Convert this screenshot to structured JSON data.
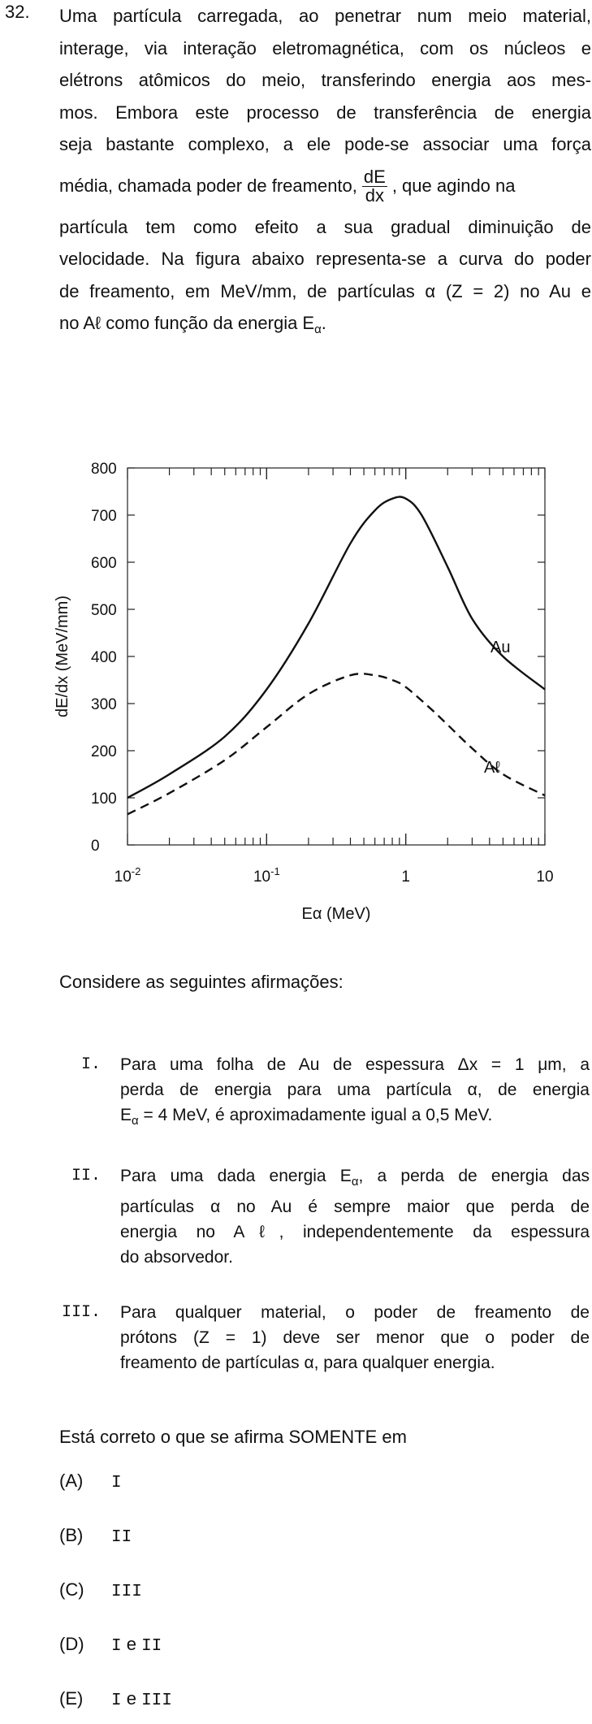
{
  "question": {
    "number": "32.",
    "lines": [
      "Uma partícula carregada, ao penetrar num meio material,",
      "interage, via interação eletromagnética, com os núcleos e",
      "elétrons atômicos do meio, transferindo energia aos mes-",
      "mos. Embora este processo de transferência de energia",
      "seja bastante  complexo, a ele pode-se associar uma força"
    ],
    "line6_before": "média, chamada poder de freamento,",
    "frac_num": "dE",
    "frac_den": "dx",
    "line6_after": ",  que agindo na",
    "line7": "partícula tem como efeito a sua gradual diminuição de",
    "line8": "velocidade. Na figura abaixo representa-se a curva do poder",
    "line9": "de freamento, em MeV/mm, de partículas α (Z = 2) no Au e",
    "line10_before": "no Aℓ como função da energia E",
    "line10_sub": "α",
    "line10_after": "."
  },
  "chart_data": {
    "type": "line",
    "xlabel": "Eα (MeV)",
    "ylabel": "dE/dx (MeV/mm)",
    "xscale": "log",
    "xlim": [
      0.01,
      10
    ],
    "ylim": [
      0,
      800
    ],
    "xticks": [
      "10-2",
      "10-1",
      "1",
      "10"
    ],
    "yticks": [
      "0",
      "100",
      "200",
      "300",
      "400",
      "500",
      "600",
      "700",
      "800"
    ],
    "series": [
      {
        "name": "Au",
        "style": "solid",
        "x": [
          0.01,
          0.02,
          0.05,
          0.1,
          0.2,
          0.4,
          0.6,
          0.8,
          1.0,
          1.3,
          2.0,
          3.0,
          5.0,
          10.0
        ],
        "y": [
          100,
          150,
          230,
          330,
          470,
          640,
          710,
          735,
          735,
          700,
          590,
          480,
          400,
          330
        ]
      },
      {
        "name": "Aℓ",
        "style": "dashed",
        "x": [
          0.01,
          0.02,
          0.05,
          0.1,
          0.2,
          0.4,
          0.6,
          0.8,
          1.0,
          1.5,
          2.0,
          3.0,
          5.0,
          10.0
        ],
        "y": [
          65,
          110,
          180,
          250,
          320,
          360,
          360,
          350,
          335,
          290,
          255,
          205,
          150,
          105
        ]
      }
    ],
    "grid": false
  },
  "consider": "Considere as seguintes afirmações:",
  "statements": [
    {
      "roman": "I.",
      "lines": [
        "Para uma folha de Au de espessura Δx = 1 μm, a",
        "perda de energia para uma partícula α, de energia",
        "E@α@ = 4 MeV, é aproximadamente igual a 0,5 MeV."
      ]
    },
    {
      "roman": "II.",
      "lines": [
        "Para uma dada energia E@α@, a perda de energia das",
        "partículas α no Au é sempre maior que perda de",
        "energia no Aℓ, independentemente da espessura",
        "do absorvedor."
      ]
    },
    {
      "roman": "III.",
      "lines": [
        "Para qualquer material, o poder de freamento de",
        "prótons (Z = 1) deve ser menor que o poder de",
        "freamento de partículas α, para qualquer energia."
      ]
    }
  ],
  "prompt": "Está correto o que se afirma SOMENTE em",
  "options": [
    {
      "letter": "(A)",
      "value": "I"
    },
    {
      "letter": "(B)",
      "value": "II"
    },
    {
      "letter": "(C)",
      "value": "III"
    },
    {
      "letter": "(D)",
      "value": "I e II"
    },
    {
      "letter": "(E)",
      "value": "I e III"
    }
  ]
}
